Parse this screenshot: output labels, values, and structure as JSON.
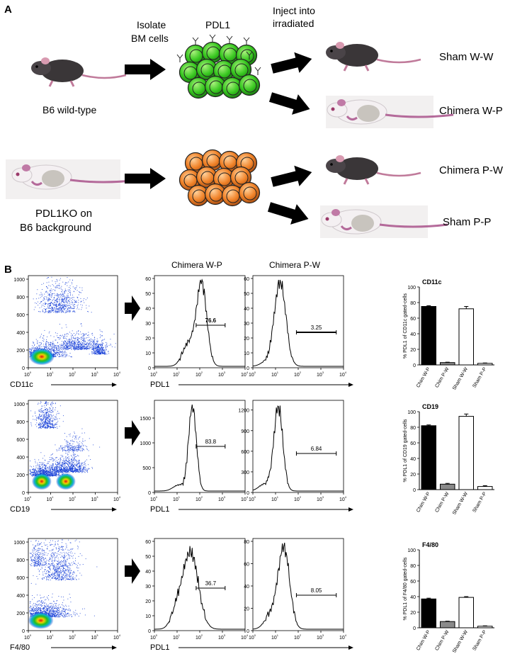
{
  "panel_a": {
    "label": "A",
    "step1": [
      "Isolate",
      "BM cells"
    ],
    "step2": [
      "Inject into",
      "irradiated"
    ],
    "pdl1_label": "PDL1",
    "donor_wt": "B6 wild-type",
    "donor_ko": [
      "PDL1KO on",
      "B6 background"
    ],
    "groups": [
      "Sham W-W",
      "Chimera W-P",
      "Chimera P-W",
      "Sham P-P"
    ],
    "colors": {
      "wt_cell": "#33cc22",
      "ko_cell": "#f08830",
      "mouse_dark": "#3a3638",
      "mouse_pink": "#b46a9a"
    }
  },
  "panel_b": {
    "label": "B",
    "col_titles": [
      "Chimera W-P",
      "Chimera P-W"
    ],
    "dot_x_ticks": [
      "10",
      "10",
      "10",
      "10",
      "10"
    ],
    "exponents": [
      "0",
      "1",
      "2",
      "3",
      "4"
    ],
    "dot_y_ticks": [
      "0",
      "200",
      "400",
      "600",
      "800",
      "1000"
    ],
    "hist_xlabel": "PDL1",
    "rows": [
      {
        "marker": "CD11c",
        "hist_wp": {
          "ymax": 60,
          "yticks": [
            "0",
            "10",
            "20",
            "30",
            "40",
            "50",
            "60"
          ],
          "gate_value": "76.6"
        },
        "hist_pw": {
          "ymax": 60,
          "yticks": [
            "0",
            "10",
            "20",
            "30",
            "40",
            "50",
            "60"
          ],
          "gate_value": "3.25"
        },
        "bar_title": "CD11c",
        "bar_ylabel": "% PDL1 of CD11c gated-cells",
        "bar_yticks": [
          "0",
          "20",
          "40",
          "60",
          "80",
          "100"
        ]
      },
      {
        "marker": "CD19",
        "hist_wp": {
          "ymax": 1800,
          "yticks": [
            "0",
            "500",
            "1000",
            "1500"
          ],
          "gate_value": "83.8"
        },
        "hist_pw": {
          "ymax": 1300,
          "yticks": [
            "0",
            "300",
            "600",
            "900",
            "1200"
          ],
          "gate_value": "6.84"
        },
        "bar_title": "CD19",
        "bar_ylabel": "% PDL1 of CD19 gated-cells",
        "bar_yticks": [
          "0",
          "20",
          "40",
          "60",
          "80",
          "100"
        ]
      },
      {
        "marker": "F4/80",
        "hist_wp": {
          "ymax": 60,
          "yticks": [
            "0",
            "10",
            "20",
            "30",
            "40",
            "50",
            "60"
          ],
          "gate_value": "36.7"
        },
        "hist_pw": {
          "ymax": 80,
          "yticks": [
            "0",
            "20",
            "40",
            "60",
            "80"
          ],
          "gate_value": "8.05"
        },
        "bar_title": "F4/80",
        "bar_ylabel": "% PDL1 of F4/80 gated-cells",
        "bar_yticks": [
          "0",
          "20",
          "40",
          "60",
          "80",
          "100"
        ]
      }
    ],
    "bar_categories": [
      "Chim W-P",
      "Chim P-W",
      "Sham W-W",
      "Sham P-P"
    ],
    "bar_fills": [
      "#000000",
      "#8a8a8a",
      "#ffffff",
      "#ffffff"
    ]
  },
  "chart_data": [
    {
      "type": "bar",
      "title": "CD11c",
      "ylabel": "% PDL1 of CD11c gated-cells",
      "categories": [
        "Chim W-P",
        "Chim P-W",
        "Sham W-W",
        "Sham P-P"
      ],
      "values": [
        75,
        3,
        72,
        2
      ],
      "errors": [
        1,
        0.5,
        3,
        0.5
      ],
      "ylim": [
        0,
        100
      ]
    },
    {
      "type": "bar",
      "title": "CD19",
      "ylabel": "% PDL1 of CD19 gated-cells",
      "categories": [
        "Chim W-P",
        "Chim P-W",
        "Sham W-W",
        "Sham P-P"
      ],
      "values": [
        82,
        7,
        94,
        4
      ],
      "errors": [
        1,
        1,
        3,
        1
      ],
      "ylim": [
        0,
        100
      ]
    },
    {
      "type": "bar",
      "title": "F4/80",
      "ylabel": "% PDL1 of F4/80 gated-cells",
      "categories": [
        "Chim W-P",
        "Chim P-W",
        "Sham W-W",
        "Sham P-P"
      ],
      "values": [
        37,
        8,
        39,
        2
      ],
      "errors": [
        1,
        0.5,
        1,
        0.5
      ],
      "ylim": [
        0,
        100
      ]
    }
  ]
}
